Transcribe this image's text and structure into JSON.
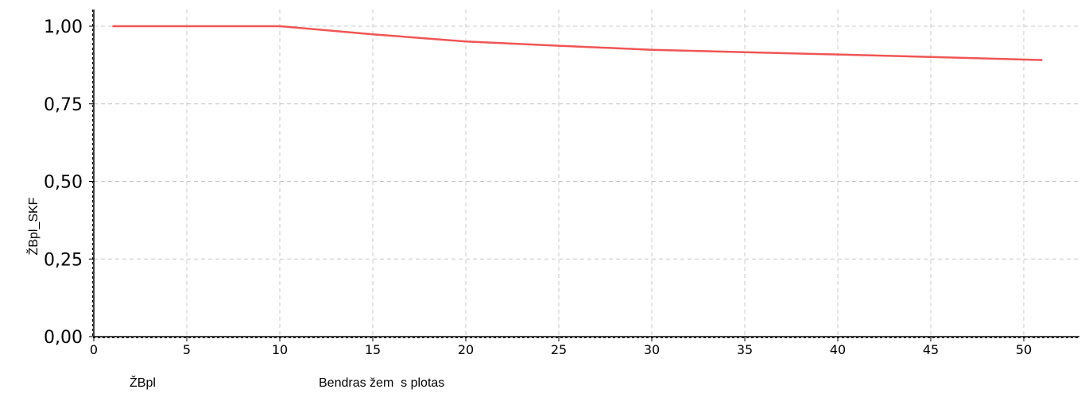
{
  "chart_data": {
    "type": "line",
    "ylabel": "ŽBpl_SKF",
    "xlim": [
      0,
      53
    ],
    "ylim": [
      0,
      1.05
    ],
    "x_ticks": [
      0,
      5,
      10,
      15,
      20,
      25,
      30,
      35,
      40,
      45,
      50
    ],
    "x_tick_labels": [
      "0",
      "5",
      "10",
      "15",
      "20",
      "25",
      "30",
      "35",
      "40",
      "45",
      "50"
    ],
    "y_ticks": [
      0,
      0.25,
      0.5,
      0.75,
      1.0
    ],
    "y_tick_labels": [
      "0,00",
      "0,25",
      "0,50",
      "0,75",
      "1,00"
    ],
    "grid": true,
    "series": [
      {
        "color": "#f05555",
        "x": [
          1,
          10,
          15,
          20,
          25,
          30,
          35,
          40,
          45,
          51
        ],
        "y": [
          1.0,
          1.0,
          0.974,
          0.951,
          0.937,
          0.924,
          0.916,
          0.909,
          0.901,
          0.891
        ]
      }
    ]
  },
  "footer": {
    "left_label": "ŽBpl",
    "center_label": "Bendras žem  s plotas"
  }
}
